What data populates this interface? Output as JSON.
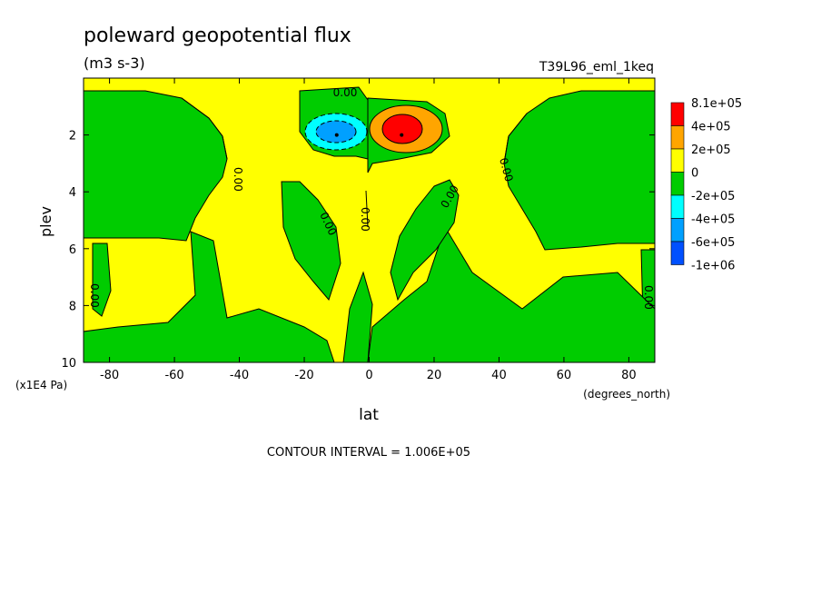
{
  "chart_data": {
    "type": "heatmap",
    "title": "poleward geopotential flux",
    "units": "(m3 s-3)",
    "run_label": "T39L96_eml_1keq",
    "xlabel": "lat",
    "x_units": "(degrees_north)",
    "ylabel": "plev",
    "y_units": "(x1E4 Pa)",
    "xlim": [
      -88,
      88
    ],
    "ylim": [
      10,
      0
    ],
    "x_ticks": [
      -80,
      -60,
      -40,
      -20,
      0,
      20,
      40,
      60,
      80
    ],
    "y_ticks": [
      2,
      4,
      6,
      8,
      10
    ],
    "contour_interval_text": "CONTOUR INTERVAL = 1.006E+05",
    "contour_labels": [
      "0.00"
    ],
    "colorbar": {
      "labels": [
        "8.1e+05",
        "4e+05",
        "2e+05",
        "0",
        "-2e+05",
        "-4e+05",
        "-6e+05",
        "-1e+06"
      ],
      "colors": [
        "#ff0000",
        "#ffa500",
        "#ffff00",
        "#00cc00",
        "#00ffff",
        "#00a0ff",
        "#0050ff"
      ]
    },
    "features": [
      {
        "name": "negative-max",
        "lat": -10,
        "plev": 2,
        "value": -600000.0
      },
      {
        "name": "positive-max",
        "lat": 10,
        "plev": 2,
        "value": 810000.0
      }
    ]
  }
}
